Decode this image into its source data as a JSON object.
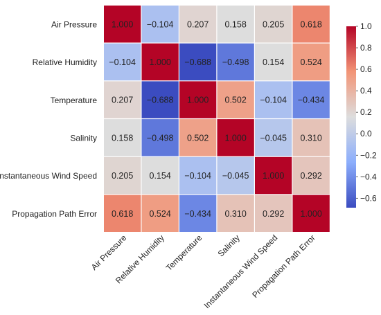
{
  "chart_data": {
    "type": "heatmap",
    "title": "",
    "variables": [
      "Air Pressure",
      "Relative Humidity",
      "Temperature",
      "Salinity",
      "Instantaneous Wind Speed",
      "Propagation Path Error"
    ],
    "matrix": [
      [
        1.0,
        -0.104,
        0.207,
        0.158,
        0.205,
        0.618
      ],
      [
        -0.104,
        1.0,
        -0.688,
        -0.498,
        0.154,
        0.524
      ],
      [
        0.207,
        -0.688,
        1.0,
        0.502,
        -0.104,
        -0.434
      ],
      [
        0.158,
        -0.498,
        0.502,
        1.0,
        -0.045,
        0.31
      ],
      [
        0.205,
        0.154,
        -0.104,
        -0.045,
        1.0,
        0.292
      ],
      [
        0.618,
        0.524,
        -0.434,
        0.31,
        0.292,
        1.0
      ]
    ],
    "value_labels": [
      [
        "1.000",
        "−0.104",
        "0.207",
        "0.158",
        "0.205",
        "0.618"
      ],
      [
        "−0.104",
        "1.000",
        "−0.688",
        "−0.498",
        "0.154",
        "0.524"
      ],
      [
        "0.207",
        "−0.688",
        "1.000",
        "0.502",
        "−0.104",
        "−0.434"
      ],
      [
        "0.158",
        "−0.498",
        "0.502",
        "1.000",
        "−0.045",
        "0.310"
      ],
      [
        "0.205",
        "0.154",
        "−0.104",
        "−0.045",
        "1.000",
        "0.292"
      ],
      [
        "0.618",
        "0.524",
        "−0.434",
        "0.310",
        "0.292",
        "1.000"
      ]
    ],
    "colorbar": {
      "min": -0.688,
      "max": 1.0,
      "ticks": [
        1.0,
        0.8,
        0.6,
        0.4,
        0.2,
        0.0,
        -0.2,
        -0.4,
        -0.6
      ],
      "tick_labels": [
        "1.0",
        "0.8",
        "0.6",
        "0.4",
        "0.2",
        "0.0",
        "−0.2",
        "−0.4",
        "−0.6"
      ],
      "colormap": "coolwarm"
    },
    "legend": "colorbar-right"
  }
}
